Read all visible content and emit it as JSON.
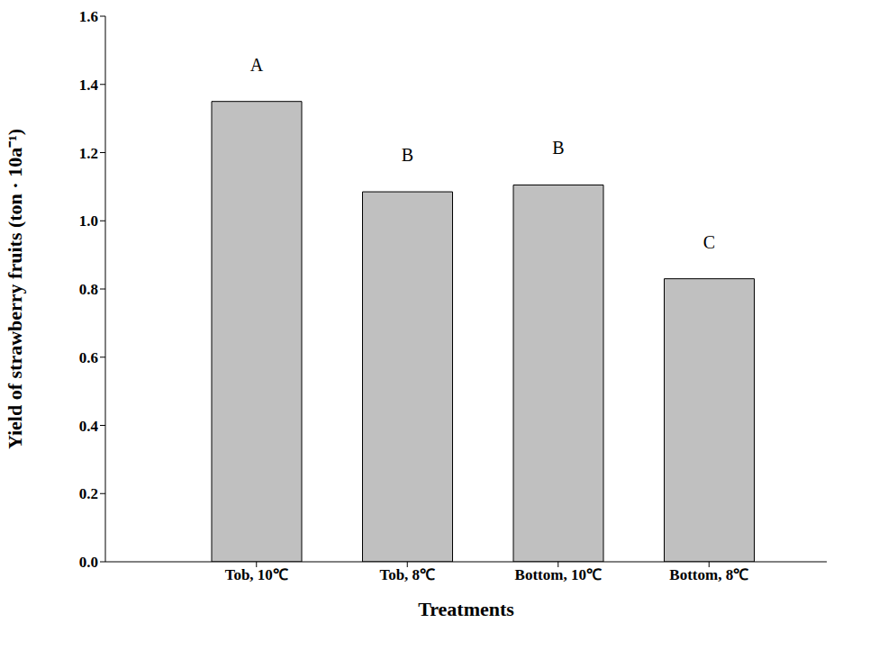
{
  "chart_data": {
    "type": "bar",
    "categories": [
      "Tob, 10℃",
      "Tob, 8℃",
      "Bottom, 10℃",
      "Bottom, 8℃"
    ],
    "values": [
      1.35,
      1.085,
      1.105,
      0.83
    ],
    "annotations": [
      "A",
      "B",
      "B",
      "C"
    ],
    "color": "#c0c0c0",
    "x_label": "Treatments",
    "y_label": "Yield of strawberry fruits (ton · 10a⁻¹)",
    "ylim": [
      0,
      1.6
    ],
    "yticks": [
      {
        "value": 0,
        "label": "0.0"
      },
      0.2,
      0.4,
      0.6,
      0.8,
      {
        "value": 1,
        "label": "1.0"
      },
      1.2,
      1.4,
      1.6
    ],
    "grid": false
  }
}
